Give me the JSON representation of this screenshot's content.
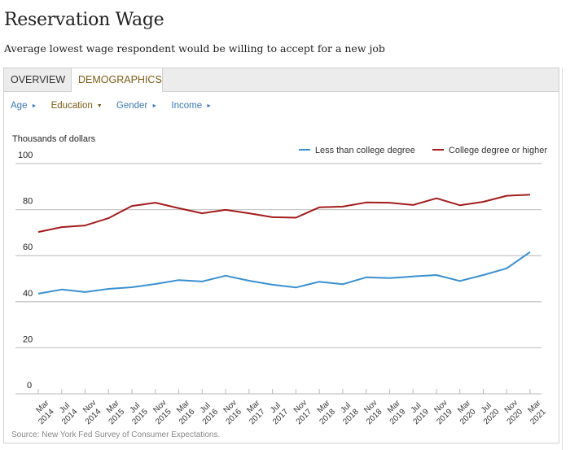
{
  "header": {
    "title": "Reservation Wage",
    "subtitle": "Average lowest wage respondent would be willing to accept for a new job"
  },
  "tabs": [
    {
      "label": "OVERVIEW",
      "active": false
    },
    {
      "label": "DEMOGRAPHICS",
      "active": true
    }
  ],
  "filters": [
    {
      "label": "Age",
      "active": false,
      "icon": "triangle-right-icon"
    },
    {
      "label": "Education",
      "active": true,
      "icon": "triangle-down-icon"
    },
    {
      "label": "Gender",
      "active": false,
      "icon": "triangle-right-icon"
    },
    {
      "label": "Income",
      "active": false,
      "icon": "triangle-right-icon"
    }
  ],
  "source": "Source: New York Fed Survey of Consumer Expectations.",
  "colors": {
    "less_than_college": "#3a8fd0",
    "college_or_higher": "#a31c1c",
    "grid": "#c8c8c8",
    "active_tab_text": "#7a5a14",
    "filter_link": "#3a78b5"
  },
  "chart_data": {
    "type": "line",
    "title": "Reservation Wage",
    "subtitle": "Average lowest wage respondent would be willing to accept for a new job",
    "ylabel": "Thousands of dollars",
    "xlabel": "",
    "ylim": [
      0,
      100
    ],
    "yticks": [
      0,
      20,
      40,
      60,
      80,
      100
    ],
    "grid": true,
    "legend_position": "top-right",
    "categories": [
      "Mar 2014",
      "Jul 2014",
      "Nov 2014",
      "Mar 2015",
      "Jul 2015",
      "Nov 2015",
      "Mar 2016",
      "Jul 2016",
      "Nov 2016",
      "Mar 2017",
      "Jul 2017",
      "Nov 2017",
      "Mar 2018",
      "Jul 2018",
      "Nov 2018",
      "Mar 2019",
      "Jul 2019",
      "Nov 2019",
      "Mar 2020",
      "Jul 2020",
      "Nov 2020",
      "Mar 2021"
    ],
    "series": [
      {
        "name": "Less than college degree",
        "color": "#3a8fd0",
        "values": [
          43.5,
          45.3,
          44.2,
          45.6,
          46.3,
          47.7,
          49.4,
          48.8,
          51.3,
          49.1,
          47.4,
          46.2,
          48.7,
          47.6,
          50.6,
          50.3,
          51.0,
          51.6,
          49.0,
          51.6,
          54.5,
          61.6
        ]
      },
      {
        "name": "College degree or higher",
        "color": "#a31c1c",
        "values": [
          70.3,
          72.4,
          73.1,
          76.3,
          81.6,
          83.0,
          80.6,
          78.4,
          79.9,
          78.4,
          76.7,
          76.5,
          81.0,
          81.3,
          83.1,
          83.0,
          82.0,
          84.9,
          81.9,
          83.4,
          86.0,
          86.5
        ]
      }
    ]
  }
}
